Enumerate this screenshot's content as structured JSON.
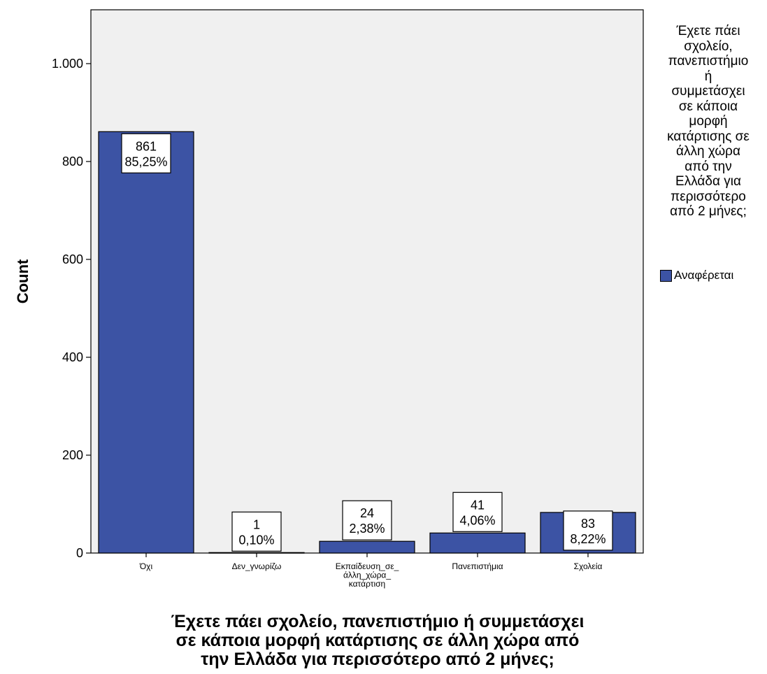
{
  "chart_data": {
    "type": "bar",
    "categories": [
      "Όχι",
      "Δεν_γνωρίζω",
      "Εκπαίδευση_σε_άλλη_χώρα_κατάρτιση",
      "Πανεπιστήμια",
      "Σχολεία"
    ],
    "category_label_lines": [
      [
        "Όχι"
      ],
      [
        "Δεν_γνωρίζω"
      ],
      [
        "Εκπαίδευση_σε_",
        "άλλη_χώρα_",
        "κατάρτιση"
      ],
      [
        "Πανεπιστήμια"
      ],
      [
        "Σχολεία"
      ]
    ],
    "values": [
      861,
      1,
      24,
      41,
      83
    ],
    "percent_labels": [
      "85,25%",
      "0,10%",
      "2,38%",
      "4,06%",
      "8,22%"
    ],
    "ylabel": "Count",
    "xlabel_lines": [
      "Έχετε πάει σχολείο, πανεπιστήμιο ή συμμετάσχει",
      "σε κάποια μορφή κατάρτισης σε άλλη χώρα από",
      "την Ελλάδα για περισσότερο από 2 μήνες;"
    ],
    "y_ticks": [
      0,
      200,
      400,
      600,
      800,
      1000
    ],
    "y_tick_labels": [
      "0",
      "200",
      "400",
      "600",
      "800",
      "1.000"
    ],
    "ylim": [
      0,
      1110
    ],
    "grid": false,
    "legend": {
      "placement": "right",
      "title_lines": [
        "Έχετε πάει",
        "σχολείο,",
        "πανεπιστήμιο",
        "ή",
        "συμμετάσχει",
        "σε κάποια",
        "μορφή",
        "κατάρτισης σε",
        "άλλη χώρα",
        "από την",
        "Ελλάδα για",
        "περισσότερο",
        "από 2 μήνες;"
      ],
      "entries": [
        {
          "name": "Αναφέρεται",
          "color": "#3c53a4"
        }
      ]
    },
    "colors": {
      "bar": "#3c53a4",
      "plot_background": "#f0f0f0"
    }
  }
}
